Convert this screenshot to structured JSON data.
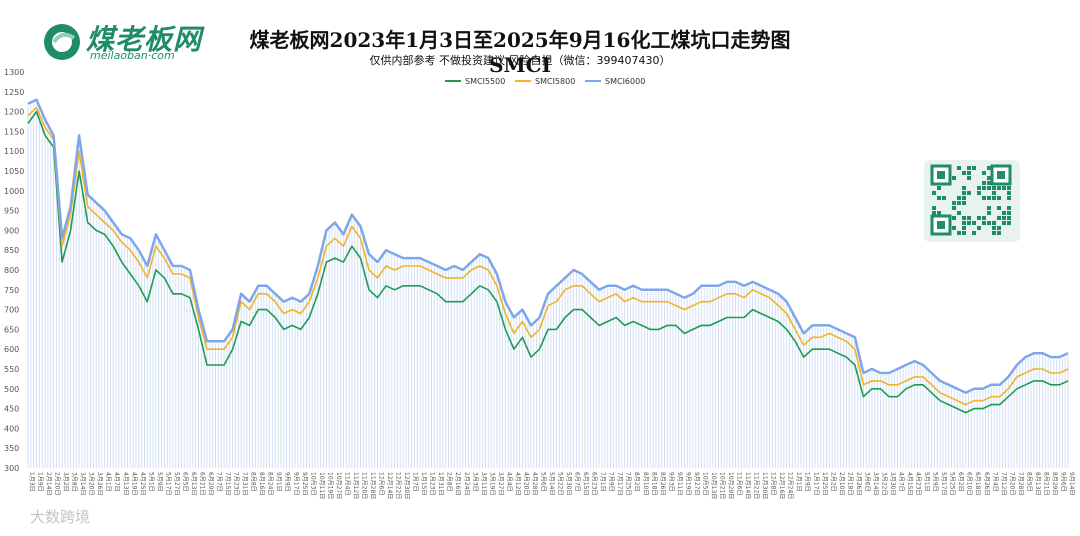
{
  "header": {
    "logo_text": "煤老板网",
    "logo_url_text": "meilaoban·com",
    "title": "煤老板网2023年1月3日至2025年9月16化工煤坑口走势图SMCI",
    "subtitle": "仅供内部参考 不做投资建议 风险自担（微信：399407430）"
  },
  "watermark": "大数跨境",
  "colors": {
    "SMCI5500": "#1e9c55",
    "SMCI5800": "#f0b429",
    "SMCI6000": "#7fa6e8",
    "logo": "#1e8c6a"
  },
  "chart_data": {
    "type": "line",
    "title": "煤老板网2023年1月3日至2025年9月16化工煤坑口走势图SMCI",
    "xlabel": "",
    "ylabel": "",
    "ylim": [
      300,
      1300
    ],
    "yticks": [
      300,
      350,
      400,
      450,
      500,
      550,
      600,
      650,
      700,
      750,
      800,
      850,
      900,
      950,
      1000,
      1050,
      1100,
      1150,
      1200,
      1250,
      1300
    ],
    "grid": false,
    "legend_position": "top-center",
    "x_tick_labels": [
      "1月3日",
      "1月9日",
      "2月14日",
      "2月20日",
      "3月2日",
      "3月8日",
      "3月14日",
      "3月20日",
      "3月26日",
      "4月1日",
      "4月7日",
      "4月13日",
      "4月19日",
      "4月25日",
      "5月1日",
      "5月9日",
      "5月17日",
      "5月27日",
      "6月5日",
      "6月13日",
      "6月21日",
      "6月29日",
      "7月7日",
      "7月15日",
      "7月23日",
      "7月31日",
      "8月8日",
      "8月16日",
      "8月24日",
      "9月1日",
      "9月9日",
      "9月17日",
      "9月25日",
      "10月3日",
      "10月11日",
      "10月19日",
      "10月27日",
      "11月4日",
      "11月12日",
      "11月20日",
      "11月28日",
      "12月6日",
      "12月14日",
      "12月22日",
      "12月30日",
      "1月7日",
      "1月15日",
      "1月23日",
      "1月31日",
      "2月8日",
      "2月16日",
      "2月24日",
      "3月3日",
      "3月11日",
      "3月19日",
      "3月27日",
      "4月4日",
      "4月12日",
      "4月20日",
      "4月28日",
      "5月6日",
      "5月14日",
      "5月22日",
      "5月30日",
      "6月7日",
      "6月15日",
      "6月23日",
      "7月1日",
      "7月9日",
      "7月17日",
      "7月25日",
      "8月2日",
      "8月10日",
      "8月18日",
      "8月26日",
      "9月3日",
      "9月11日",
      "9月19日",
      "9月27日",
      "10月5日",
      "10月13日",
      "10月21日",
      "10月29日",
      "11月6日",
      "11月14日",
      "11月22日",
      "11月30日",
      "12月8日",
      "12月16日",
      "12月24日",
      "1月1日",
      "1月9日",
      "1月17日",
      "1月25日",
      "2月2日",
      "2月10日",
      "2月18日",
      "2月26日",
      "3月6日",
      "3月14日",
      "3月22日",
      "3月30日",
      "4月7日",
      "4月15日",
      "4月23日",
      "5月1日",
      "5月9日",
      "5月17日",
      "5月25日",
      "6月2日",
      "6月10日",
      "6月18日",
      "6月26日",
      "7月4日",
      "7月12日",
      "7月20日",
      "7月28日",
      "8月5日",
      "8月13日",
      "8月21日",
      "8月29日",
      "9月6日",
      "9月14日"
    ],
    "series": [
      {
        "name": "SMCI5500",
        "values": [
          1170,
          1200,
          1140,
          1110,
          820,
          900,
          1050,
          920,
          900,
          890,
          860,
          820,
          790,
          760,
          720,
          800,
          780,
          740,
          740,
          730,
          650,
          560,
          560,
          560,
          600,
          670,
          660,
          700,
          700,
          680,
          650,
          660,
          650,
          680,
          740,
          820,
          830,
          820,
          860,
          830,
          750,
          730,
          760,
          750,
          760,
          760,
          760,
          750,
          740,
          720,
          720,
          720,
          740,
          760,
          750,
          720,
          650,
          600,
          630,
          580,
          600,
          650,
          650,
          680,
          700,
          700,
          680,
          660,
          670,
          680,
          660,
          670,
          660,
          650,
          650,
          660,
          660,
          640,
          650,
          660,
          660,
          670,
          680,
          680,
          680,
          700,
          690,
          680,
          670,
          650,
          620,
          580,
          600,
          600,
          600,
          590,
          580,
          560,
          480,
          500,
          500,
          480,
          480,
          500,
          510,
          510,
          490,
          470,
          460,
          450,
          440,
          450,
          450,
          460,
          460,
          480,
          500,
          510,
          520,
          520,
          510,
          510,
          520
        ]
      },
      {
        "name": "SMCI5800",
        "values": [
          1190,
          1210,
          1160,
          1130,
          860,
          940,
          1100,
          960,
          940,
          920,
          900,
          870,
          850,
          820,
          780,
          860,
          830,
          790,
          790,
          780,
          680,
          600,
          600,
          600,
          630,
          720,
          700,
          740,
          740,
          720,
          690,
          700,
          690,
          720,
          780,
          860,
          880,
          860,
          910,
          880,
          800,
          780,
          810,
          800,
          810,
          810,
          810,
          800,
          790,
          780,
          780,
          780,
          800,
          810,
          800,
          760,
          690,
          640,
          670,
          630,
          650,
          710,
          720,
          750,
          760,
          760,
          740,
          720,
          730,
          740,
          720,
          730,
          720,
          720,
          720,
          720,
          710,
          700,
          710,
          720,
          720,
          730,
          740,
          740,
          730,
          750,
          740,
          730,
          710,
          690,
          650,
          610,
          630,
          630,
          640,
          630,
          620,
          600,
          510,
          520,
          520,
          510,
          510,
          520,
          530,
          530,
          510,
          490,
          480,
          470,
          460,
          470,
          470,
          480,
          480,
          500,
          530,
          540,
          550,
          550,
          540,
          540,
          550
        ]
      },
      {
        "name": "SMCI6000",
        "values": [
          1220,
          1230,
          1180,
          1140,
          880,
          960,
          1140,
          990,
          970,
          950,
          920,
          890,
          880,
          850,
          810,
          890,
          850,
          810,
          810,
          800,
          700,
          620,
          620,
          620,
          650,
          740,
          720,
          760,
          760,
          740,
          720,
          730,
          720,
          740,
          810,
          900,
          920,
          890,
          940,
          910,
          840,
          820,
          850,
          840,
          830,
          830,
          830,
          820,
          810,
          800,
          810,
          800,
          820,
          840,
          830,
          790,
          720,
          680,
          700,
          660,
          680,
          740,
          760,
          780,
          800,
          790,
          770,
          750,
          760,
          760,
          750,
          760,
          750,
          750,
          750,
          750,
          740,
          730,
          740,
          760,
          760,
          760,
          770,
          770,
          760,
          770,
          760,
          750,
          740,
          720,
          680,
          640,
          660,
          660,
          660,
          650,
          640,
          630,
          540,
          550,
          540,
          540,
          550,
          560,
          570,
          560,
          540,
          520,
          510,
          500,
          490,
          500,
          500,
          510,
          510,
          530,
          560,
          580,
          590,
          590,
          580,
          580,
          590
        ]
      }
    ]
  }
}
